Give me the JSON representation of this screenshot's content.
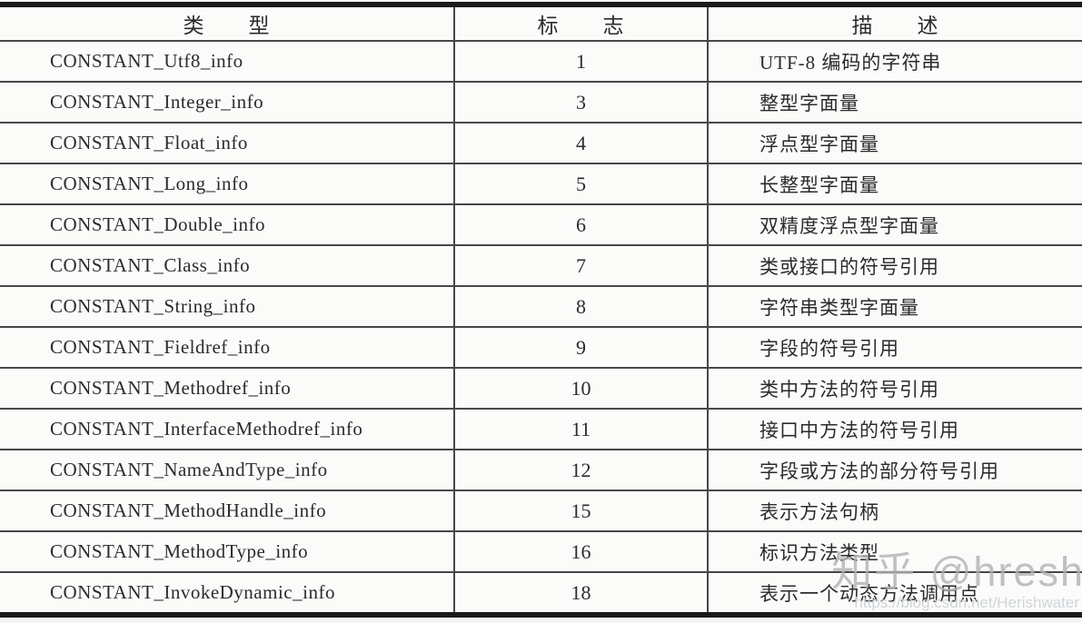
{
  "page": {
    "background": "#f6f6f4",
    "text_color": "#2b2b2b",
    "thin_line_color": "#474747",
    "thick_border_color": "#1a1a1a"
  },
  "table": {
    "columns": [
      {
        "key": "type",
        "label": "类　　型"
      },
      {
        "key": "tag",
        "label": "标　　志"
      },
      {
        "key": "desc",
        "label": "描　　述"
      }
    ],
    "rows": [
      {
        "type": "CONSTANT_Utf8_info",
        "tag": "1",
        "desc": "UTF-8 编码的字符串"
      },
      {
        "type": "CONSTANT_Integer_info",
        "tag": "3",
        "desc": "整型字面量"
      },
      {
        "type": "CONSTANT_Float_info",
        "tag": "4",
        "desc": "浮点型字面量"
      },
      {
        "type": "CONSTANT_Long_info",
        "tag": "5",
        "desc": "长整型字面量"
      },
      {
        "type": "CONSTANT_Double_info",
        "tag": "6",
        "desc": "双精度浮点型字面量"
      },
      {
        "type": "CONSTANT_Class_info",
        "tag": "7",
        "desc": "类或接口的符号引用"
      },
      {
        "type": "CONSTANT_String_info",
        "tag": "8",
        "desc": "字符串类型字面量"
      },
      {
        "type": "CONSTANT_Fieldref_info",
        "tag": "9",
        "desc": "字段的符号引用"
      },
      {
        "type": "CONSTANT_Methodref_info",
        "tag": "10",
        "desc": "类中方法的符号引用"
      },
      {
        "type": "CONSTANT_InterfaceMethodref_info",
        "tag": "11",
        "desc": "接口中方法的符号引用"
      },
      {
        "type": "CONSTANT_NameAndType_info",
        "tag": "12",
        "desc": "字段或方法的部分符号引用"
      },
      {
        "type": "CONSTANT_MethodHandle_info",
        "tag": "15",
        "desc": "表示方法句柄"
      },
      {
        "type": "CONSTANT_MethodType_info",
        "tag": "16",
        "desc": "标识方法类型"
      },
      {
        "type": "CONSTANT_InvokeDynamic_info",
        "tag": "18",
        "desc": "表示一个动态方法调用点"
      }
    ]
  },
  "watermarks": {
    "zhihu": "知乎 @hresh",
    "url": "https://blog.csdn.net/Herishwater"
  }
}
